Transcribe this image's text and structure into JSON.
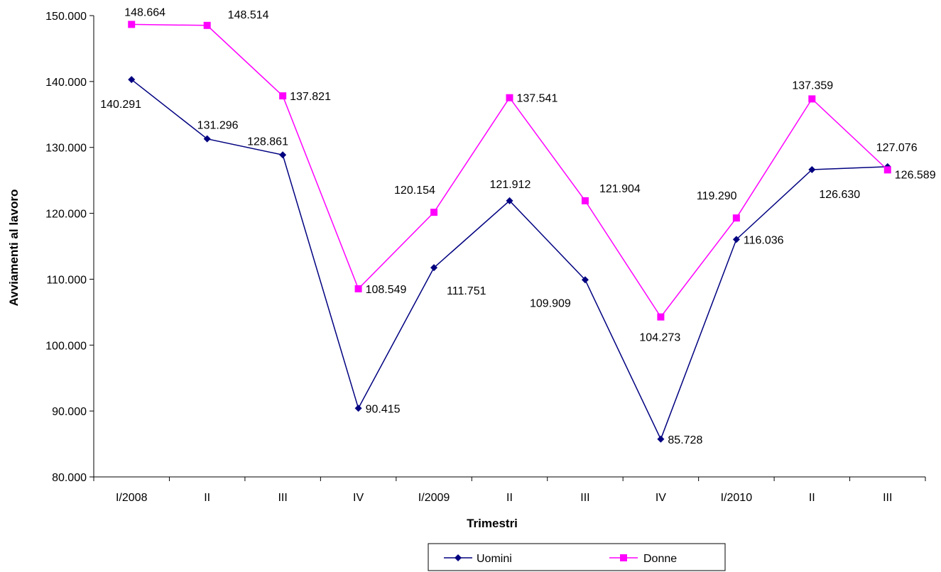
{
  "chart_data": {
    "type": "line",
    "xlabel": "Trimestri",
    "ylabel": "Avviamenti al lavoro",
    "ylim": [
      80000,
      150000
    ],
    "y_ticks": [
      "80.000",
      "90.000",
      "100.000",
      "110.000",
      "120.000",
      "130.000",
      "140.000",
      "150.000"
    ],
    "categories": [
      "I/2008",
      "II",
      "III",
      "IV",
      "I/2009",
      "II",
      "III",
      "IV",
      "I/2010",
      "II",
      "III"
    ],
    "legend_position": "bottom",
    "series": [
      {
        "name": "Uomini",
        "color": "#000080",
        "marker": "diamond",
        "values": [
          140291,
          131296,
          128861,
          90415,
          111751,
          121912,
          109909,
          85728,
          116036,
          126630,
          127076
        ],
        "labels": [
          "140.291",
          "131.296",
          "128.861",
          "90.415",
          "111.751",
          "121.912",
          "109.909",
          "85.728",
          "116.036",
          "126.630",
          "127.076"
        ]
      },
      {
        "name": "Donne",
        "color": "#FF00FF",
        "marker": "square",
        "values": [
          148664,
          148514,
          137821,
          108549,
          120154,
          137541,
          121904,
          104273,
          119290,
          137359,
          126589
        ],
        "labels": [
          "148.664",
          "148.514",
          "137.821",
          "108.549",
          "120.154",
          "137.541",
          "121.904",
          "104.273",
          "119.290",
          "137.359",
          "126.589"
        ]
      }
    ]
  }
}
